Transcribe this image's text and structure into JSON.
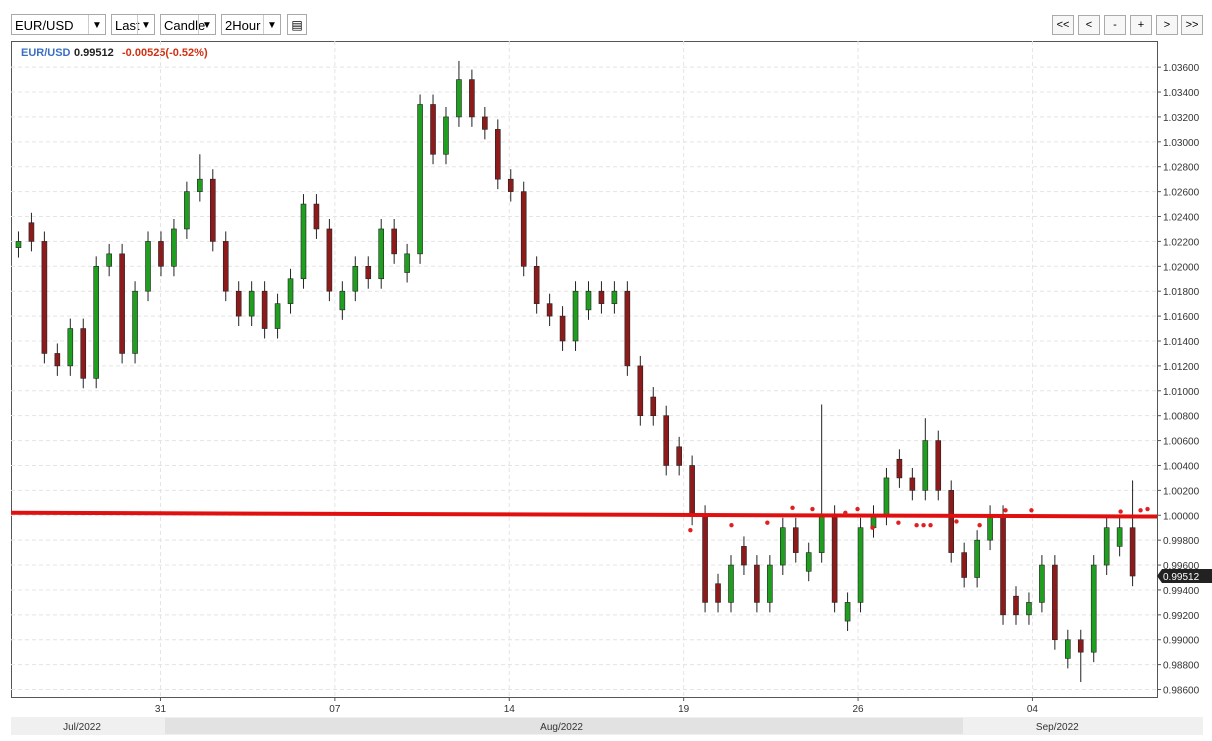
{
  "toolbar": {
    "symbol": "EUR/USD",
    "field": "Last",
    "style": "Candle",
    "interval": "2Hour",
    "nav": [
      "<<",
      "<",
      "-",
      "+",
      ">",
      ">>"
    ]
  },
  "chart_data": {
    "type": "candlestick",
    "legend": {
      "symbol": "EUR/USD",
      "change": "-0.00525(-0.52%)"
    },
    "x": [
      0.3,
      0.82,
      1.34,
      1.86,
      2.38,
      2.9,
      3.42,
      3.94,
      4.46,
      4.98,
      5.5,
      6.02,
      6.54,
      7.06,
      7.58,
      8.1,
      8.62,
      9.14,
      9.66,
      10.18,
      10.7,
      11.22,
      11.74,
      12.26,
      12.78,
      13.3,
      13.82,
      14.34,
      14.86,
      15.38,
      15.9,
      16.42,
      16.94,
      17.46,
      17.98,
      18.5,
      19.02,
      19.54,
      20.06,
      20.58,
      21.1,
      21.62,
      22.14,
      22.66,
      23.18,
      23.7,
      24.22,
      24.74,
      25.26,
      25.78,
      26.3,
      26.82,
      27.34,
      27.86,
      28.38,
      28.9,
      29.42,
      29.94,
      30.46,
      30.98,
      31.5,
      32.02,
      32.54,
      33.06,
      33.58,
      34.1,
      34.62,
      35.14,
      35.66,
      36.18,
      36.7,
      37.22,
      37.74,
      38.26,
      38.78,
      39.3,
      39.82,
      40.34,
      40.86,
      41.38,
      41.9,
      42.42,
      42.94,
      43.46,
      43.98,
      44.5,
      45.02
    ],
    "open": [
      1.0215,
      1.0235,
      1.022,
      1.013,
      1.012,
      1.015,
      1.011,
      1.02,
      1.021,
      1.013,
      1.018,
      1.022,
      1.02,
      1.023,
      1.026,
      1.027,
      1.022,
      1.018,
      1.016,
      1.018,
      1.015,
      1.017,
      1.019,
      1.025,
      1.023,
      1.0165,
      1.018,
      1.02,
      1.019,
      1.023,
      1.0195,
      1.021,
      1.033,
      1.029,
      1.032,
      1.035,
      1.032,
      1.031,
      1.027,
      1.026,
      1.02,
      1.017,
      1.016,
      1.014,
      1.0165,
      1.018,
      1.017,
      1.018,
      1.012,
      1.0095,
      1.008,
      1.0055,
      1.004,
      1.0,
      0.9945,
      0.993,
      0.9975,
      0.996,
      0.993,
      0.996,
      0.999,
      0.9955,
      0.997,
      1.0,
      0.9915,
      0.993,
      0.999,
      1.0,
      1.0045,
      1.003,
      1.002,
      1.006,
      1.002,
      0.997,
      0.995,
      0.998,
      1.0,
      0.9935,
      0.992,
      0.993,
      0.996,
      0.9885,
      0.99,
      0.989,
      0.996,
      0.9975,
      0.999
    ],
    "high": [
      1.0228,
      1.0243,
      1.0228,
      1.0138,
      1.0158,
      1.0158,
      1.0208,
      1.0218,
      1.0218,
      1.0188,
      1.0228,
      1.0228,
      1.0238,
      1.0268,
      1.029,
      1.0278,
      1.0228,
      1.0188,
      1.0188,
      1.0188,
      1.0178,
      1.0198,
      1.0258,
      1.0258,
      1.0238,
      1.0188,
      1.0208,
      1.0208,
      1.0238,
      1.0238,
      1.0218,
      1.0338,
      1.0338,
      1.0328,
      1.0365,
      1.0358,
      1.0328,
      1.0318,
      1.0278,
      1.0268,
      1.0208,
      1.0178,
      1.0168,
      1.0188,
      1.0188,
      1.0188,
      1.0188,
      1.0188,
      1.0128,
      1.0103,
      1.0088,
      1.0063,
      1.0048,
      1.0008,
      0.9953,
      0.9968,
      0.9983,
      0.9968,
      0.9968,
      0.9998,
      0.9998,
      0.9978,
      1.0089,
      1.0008,
      0.9938,
      0.9998,
      1.0008,
      1.0038,
      1.0053,
      1.0038,
      1.0078,
      1.0068,
      1.0028,
      0.9978,
      0.9988,
      1.0008,
      1.0008,
      0.9943,
      0.9938,
      0.9968,
      0.9968,
      0.9908,
      0.9908,
      0.9968,
      0.9998,
      0.9998,
      1.0028
    ],
    "low": [
      1.0207,
      1.0212,
      1.0122,
      1.0112,
      1.0112,
      1.0102,
      1.0102,
      1.0192,
      1.0122,
      1.0122,
      1.0172,
      1.0192,
      1.0192,
      1.0222,
      1.0252,
      1.0212,
      1.0172,
      1.0152,
      1.0152,
      1.0142,
      1.0142,
      1.0162,
      1.0182,
      1.0222,
      1.0172,
      1.0157,
      1.0172,
      1.0182,
      1.0182,
      1.0202,
      1.0187,
      1.0202,
      1.0282,
      1.0282,
      1.0312,
      1.0312,
      1.0302,
      1.0262,
      1.0252,
      1.0192,
      1.0162,
      1.0152,
      1.0132,
      1.0132,
      1.0157,
      1.0162,
      1.0162,
      1.0112,
      1.0072,
      1.0072,
      1.0032,
      1.0032,
      0.9992,
      0.9922,
      0.9922,
      0.9922,
      0.9952,
      0.9922,
      0.9922,
      0.9952,
      0.9962,
      0.9947,
      0.9962,
      0.9922,
      0.9907,
      0.9922,
      0.9982,
      0.9992,
      1.0022,
      1.0012,
      1.0012,
      1.0012,
      0.9962,
      0.9942,
      0.9942,
      0.9972,
      0.9912,
      0.9912,
      0.9912,
      0.9922,
      0.9892,
      0.9877,
      0.9866,
      0.9882,
      0.9952,
      0.9967,
      0.9943
    ],
    "close": [
      1.022,
      1.022,
      1.013,
      1.012,
      1.015,
      1.011,
      1.02,
      1.021,
      1.013,
      1.018,
      1.022,
      1.02,
      1.023,
      1.026,
      1.027,
      1.022,
      1.018,
      1.016,
      1.018,
      1.015,
      1.017,
      1.019,
      1.025,
      1.023,
      1.018,
      1.018,
      1.02,
      1.019,
      1.023,
      1.021,
      1.021,
      1.033,
      1.029,
      1.032,
      1.035,
      1.032,
      1.031,
      1.027,
      1.026,
      1.02,
      1.017,
      1.016,
      1.014,
      1.018,
      1.018,
      1.017,
      1.018,
      1.012,
      1.008,
      1.008,
      1.004,
      1.004,
      1.0,
      0.993,
      0.993,
      0.996,
      0.996,
      0.993,
      0.996,
      0.999,
      0.997,
      0.997,
      1.0,
      0.993,
      0.993,
      0.999,
      1.0,
      1.003,
      1.003,
      1.002,
      1.006,
      1.002,
      0.997,
      0.995,
      0.998,
      1.0,
      0.992,
      0.992,
      0.993,
      0.996,
      0.99,
      0.99,
      0.989,
      0.996,
      0.999,
      0.999,
      0.99512
    ],
    "up_color": "#1f9e1f",
    "down_color": "#8e1b1b",
    "xlim": [
      0,
      46
    ],
    "xticks": [
      {
        "value": 6,
        "label": "31"
      },
      {
        "value": 13,
        "label": "07"
      },
      {
        "value": 20,
        "label": "14"
      },
      {
        "value": 27,
        "label": "19"
      },
      {
        "value": 34,
        "label": "26"
      },
      {
        "value": 41,
        "label": "04"
      }
    ],
    "month_ticks": [
      {
        "value": 2.85,
        "label": "Jul/2022"
      },
      {
        "value": 22.1,
        "label": "Aug/2022"
      },
      {
        "value": 42,
        "label": "Sep/2022"
      }
    ],
    "ylim": [
      0.9854,
      1.0381
    ],
    "yticks": [
      {
        "value": 0.986,
        "label": "0.98600"
      },
      {
        "value": 0.988,
        "label": "0.98800"
      },
      {
        "value": 0.99,
        "label": "0.99000"
      },
      {
        "value": 0.992,
        "label": "0.99200"
      },
      {
        "value": 0.994,
        "label": "0.99400"
      },
      {
        "value": 0.996,
        "label": "0.99600"
      },
      {
        "value": 0.998,
        "label": "0.99800"
      },
      {
        "value": 1.0,
        "label": "1.00000"
      },
      {
        "value": 1.002,
        "label": "1.00200"
      },
      {
        "value": 1.004,
        "label": "1.00400"
      },
      {
        "value": 1.006,
        "label": "1.00600"
      },
      {
        "value": 1.008,
        "label": "1.00800"
      },
      {
        "value": 1.01,
        "label": "1.01000"
      },
      {
        "value": 1.012,
        "label": "1.01200"
      },
      {
        "value": 1.014,
        "label": "1.01400"
      },
      {
        "value": 1.016,
        "label": "1.01600"
      },
      {
        "value": 1.018,
        "label": "1.01800"
      },
      {
        "value": 1.02,
        "label": "1.02000"
      },
      {
        "value": 1.022,
        "label": "1.02200"
      },
      {
        "value": 1.024,
        "label": "1.02400"
      },
      {
        "value": 1.026,
        "label": "1.02600"
      },
      {
        "value": 1.028,
        "label": "1.02800"
      },
      {
        "value": 1.03,
        "label": "1.03000"
      },
      {
        "value": 1.032,
        "label": "1.03200"
      },
      {
        "value": 1.034,
        "label": "1.03400"
      },
      {
        "value": 1.036,
        "label": "1.03600"
      }
    ],
    "grid": true,
    "last_price": {
      "value": 0.99512,
      "label": "0.99512"
    },
    "trend_line": {
      "x": [
        0,
        46
      ],
      "y": [
        1.0002,
        0.9999
      ],
      "color": "#e01010"
    },
    "signals": {
      "color": "#e02020",
      "x": [
        27.27,
        28.92,
        30.36,
        31.37,
        32.17,
        33.49,
        33.98,
        34.58,
        35.62,
        36.35,
        36.63,
        36.91,
        37.95,
        38.88,
        39.92,
        40.96,
        44.54,
        45.34,
        45.62
      ],
      "y": [
        0.9988,
        0.9992,
        0.9994,
        1.0006,
        1.0005,
        1.0002,
        1.0005,
        0.999,
        0.9994,
        0.9992,
        0.9992,
        0.9992,
        0.9995,
        0.9992,
        1.0004,
        1.0004,
        1.0003,
        1.0004,
        1.0005
      ]
    }
  }
}
